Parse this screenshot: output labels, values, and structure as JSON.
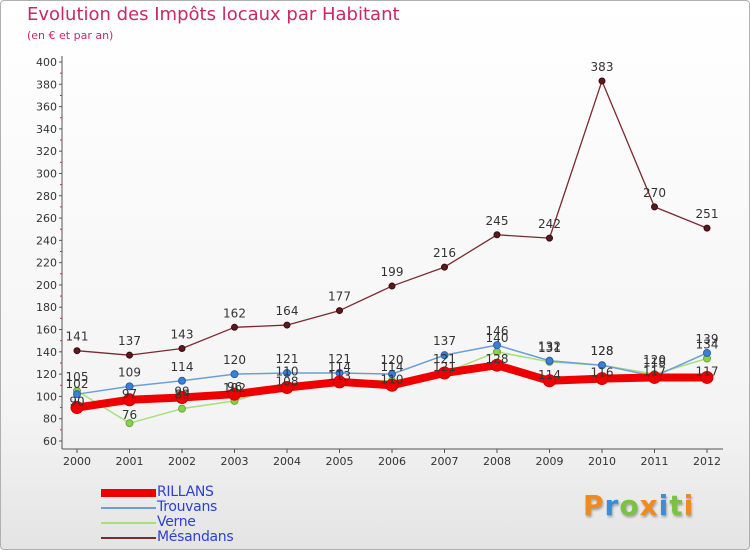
{
  "title": "Evolution des Impôts locaux par Habitant",
  "subtitle": "(en € et par an)",
  "chart_data": {
    "type": "line",
    "title": "Evolution des Impôts locaux par Habitant",
    "subtitle": "(en € et par an)",
    "xlabel": "",
    "ylabel": "",
    "categories": [
      "2000",
      "2001",
      "2002",
      "2003",
      "2004",
      "2005",
      "2006",
      "2007",
      "2008",
      "2009",
      "2010",
      "2011",
      "2012"
    ],
    "ylim": [
      60,
      400
    ],
    "yticks": [
      60,
      80,
      100,
      120,
      140,
      160,
      180,
      200,
      220,
      240,
      260,
      280,
      300,
      320,
      340,
      360,
      380,
      400
    ],
    "grid": false,
    "legend": "bottom-left",
    "series": [
      {
        "name": "RILLANS",
        "color": "#ee0000",
        "values": [
          90,
          97,
          99,
          102,
          108,
          113,
          110,
          121,
          128,
          114,
          116,
          117,
          117
        ]
      },
      {
        "name": "Trouvans",
        "color": "#6a9fd8",
        "values": [
          102,
          109,
          114,
          120,
          121,
          121,
          120,
          137,
          146,
          132,
          128,
          118,
          139
        ]
      },
      {
        "name": "Verne",
        "color": "#a6e07e",
        "values": [
          105,
          76,
          89,
          96,
          110,
          114,
          114,
          121,
          140,
          131,
          128,
          120,
          134
        ]
      },
      {
        "name": "Mésandans",
        "color": "#7a2a30",
        "values": [
          141,
          137,
          143,
          162,
          164,
          177,
          199,
          216,
          245,
          242,
          383,
          270,
          251
        ]
      }
    ],
    "data_labels": [
      {
        "text": "141",
        "series": "Mésandans",
        "x": "2000",
        "y": 141
      },
      {
        "text": "137",
        "series": "Mésandans",
        "x": "2001",
        "y": 137
      },
      {
        "text": "143",
        "series": "Mésandans",
        "x": "2002",
        "y": 143
      },
      {
        "text": "162",
        "series": "Mésandans",
        "x": "2003",
        "y": 162
      },
      {
        "text": "164",
        "series": "Mésandans",
        "x": "2004",
        "y": 164
      },
      {
        "text": "177",
        "series": "Mésandans",
        "x": "2005",
        "y": 177
      },
      {
        "text": "199",
        "series": "Mésandans",
        "x": "2006",
        "y": 199
      },
      {
        "text": "216",
        "series": "Mésandans",
        "x": "2007",
        "y": 216
      },
      {
        "text": "245",
        "series": "Mésandans",
        "x": "2008",
        "y": 245
      },
      {
        "text": "242",
        "series": "Mésandans",
        "x": "2009",
        "y": 242
      },
      {
        "text": "383",
        "series": "Mésandans",
        "x": "2010",
        "y": 383
      },
      {
        "text": "270",
        "series": "Mésandans",
        "x": "2011",
        "y": 270
      },
      {
        "text": "251",
        "series": "Mésandans",
        "x": "2012",
        "y": 251
      },
      {
        "text": "109",
        "series": "Trouvans",
        "x": "2001",
        "y": 109
      },
      {
        "text": "114",
        "series": "Trouvans",
        "x": "2002",
        "y": 114
      },
      {
        "text": "120",
        "series": "Trouvans",
        "x": "2003",
        "y": 120
      },
      {
        "text": "121",
        "series": "Trouvans",
        "x": "2004",
        "y": 121
      },
      {
        "text": "121",
        "series": "Trouvans",
        "x": "2005",
        "y": 121
      },
      {
        "text": "120",
        "series": "Trouvans",
        "x": "2006",
        "y": 120
      },
      {
        "text": "137",
        "series": "Trouvans",
        "x": "2007",
        "y": 137
      },
      {
        "text": "146",
        "series": "Trouvans",
        "x": "2008",
        "y": 146
      },
      {
        "text": "132",
        "series": "Trouvans",
        "x": "2009",
        "y": 132
      },
      {
        "text": "128",
        "series": "Trouvans",
        "x": "2010",
        "y": 128
      },
      {
        "text": "118",
        "series": "Trouvans",
        "x": "2011",
        "y": 118
      },
      {
        "text": "139",
        "series": "Trouvans",
        "x": "2012",
        "y": 139
      },
      {
        "text": "105",
        "series": "Verne",
        "x": "2000",
        "y": 105
      },
      {
        "text": "76",
        "series": "Verne",
        "x": "2001",
        "y": 76
      },
      {
        "text": "89",
        "series": "Verne",
        "x": "2002",
        "y": 89
      },
      {
        "text": "96",
        "series": "Verne",
        "x": "2003",
        "y": 96
      },
      {
        "text": "110",
        "series": "Verne",
        "x": "2004",
        "y": 110
      },
      {
        "text": "114",
        "series": "Verne",
        "x": "2005",
        "y": 114
      },
      {
        "text": "114",
        "series": "Verne",
        "x": "2006",
        "y": 114
      },
      {
        "text": "121",
        "series": "Verne",
        "x": "2007",
        "y": 121
      },
      {
        "text": "140",
        "series": "Verne",
        "x": "2008",
        "y": 140
      },
      {
        "text": "131",
        "series": "Verne",
        "x": "2009",
        "y": 131
      },
      {
        "text": "128",
        "series": "Verne",
        "x": "2010",
        "y": 128
      },
      {
        "text": "120",
        "series": "Verne",
        "x": "2011",
        "y": 120
      },
      {
        "text": "134",
        "series": "Verne",
        "x": "2012",
        "y": 134
      },
      {
        "text": "102",
        "series": "Trouvans",
        "x": "2000",
        "y": 102
      },
      {
        "text": "90",
        "series": "RILLANS",
        "x": "2000",
        "y": 90
      },
      {
        "text": "97",
        "series": "RILLANS",
        "x": "2001",
        "y": 97
      },
      {
        "text": "99",
        "series": "RILLANS",
        "x": "2002",
        "y": 99
      },
      {
        "text": "102",
        "series": "RILLANS",
        "x": "2003",
        "y": 102
      },
      {
        "text": "108",
        "series": "RILLANS",
        "x": "2004",
        "y": 108
      },
      {
        "text": "113",
        "series": "RILLANS",
        "x": "2005",
        "y": 113
      },
      {
        "text": "110",
        "series": "RILLANS",
        "x": "2006",
        "y": 110
      },
      {
        "text": "121",
        "series": "RILLANS",
        "x": "2007",
        "y": 121
      },
      {
        "text": "128",
        "series": "RILLANS",
        "x": "2008",
        "y": 128
      },
      {
        "text": "114",
        "series": "RILLANS",
        "x": "2009",
        "y": 114
      },
      {
        "text": "116",
        "series": "RILLANS",
        "x": "2010",
        "y": 116
      },
      {
        "text": "117",
        "series": "RILLANS",
        "x": "2011",
        "y": 117
      },
      {
        "text": "117",
        "series": "RILLANS",
        "x": "2012",
        "y": 117
      }
    ]
  },
  "legend": [
    {
      "label": "RILLANS",
      "color": "#ee0000"
    },
    {
      "label": "Trouvans",
      "color": "#6a9fd8"
    },
    {
      "label": "Verne",
      "color": "#a6e07e"
    },
    {
      "label": "Mésandans",
      "color": "#7a2a30"
    }
  ],
  "logo": {
    "text": "Proxiti",
    "letters": [
      {
        "ch": "P",
        "color": "#f08a1e"
      },
      {
        "ch": "r",
        "color": "#3a8ed8"
      },
      {
        "ch": "o",
        "color": "#7cc242"
      },
      {
        "ch": "x",
        "color": "#f08a1e"
      },
      {
        "ch": "i",
        "color": "#3a8ed8"
      },
      {
        "ch": "t",
        "color": "#7cc242"
      },
      {
        "ch": "i",
        "color": "#f08a1e"
      }
    ]
  }
}
